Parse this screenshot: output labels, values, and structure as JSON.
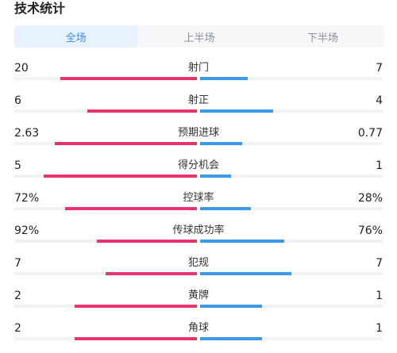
{
  "title": "技术统计",
  "tabs": [
    {
      "label": "全场",
      "active": true
    },
    {
      "label": "上半场",
      "active": false
    },
    {
      "label": "下半场",
      "active": false
    }
  ],
  "colors": {
    "home": "#e8336d",
    "away": "#3d9ae8",
    "tab_active": "#3d8ee6"
  },
  "stats": [
    {
      "label": "射门",
      "home": "20",
      "away": "7",
      "home_fraction": 0.75,
      "away_fraction": 0.26
    },
    {
      "label": "射正",
      "home": "6",
      "away": "4",
      "home_fraction": 0.6,
      "away_fraction": 0.4
    },
    {
      "label": "预期进球",
      "home": "2.63",
      "away": "0.77",
      "home_fraction": 0.78,
      "away_fraction": 0.23
    },
    {
      "label": "得分机会",
      "home": "5",
      "away": "1",
      "home_fraction": 0.84,
      "away_fraction": 0.17
    },
    {
      "label": "控球率",
      "home": "72%",
      "away": "28%",
      "home_fraction": 0.72,
      "away_fraction": 0.28
    },
    {
      "label": "传球成功率",
      "home": "92%",
      "away": "76%",
      "home_fraction": 0.55,
      "away_fraction": 0.46
    },
    {
      "label": "犯规",
      "home": "7",
      "away": "7",
      "home_fraction": 0.5,
      "away_fraction": 0.5
    },
    {
      "label": "黄牌",
      "home": "2",
      "away": "1",
      "home_fraction": 0.67,
      "away_fraction": 0.34
    },
    {
      "label": "角球",
      "home": "2",
      "away": "1",
      "home_fraction": 0.67,
      "away_fraction": 0.34
    }
  ]
}
